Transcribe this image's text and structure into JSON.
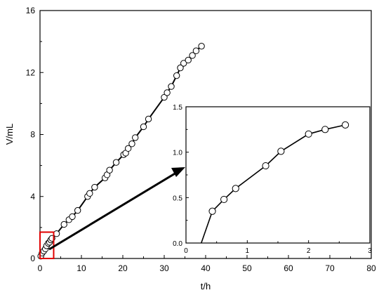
{
  "chart_data": {
    "type": "scatter",
    "xlabel": "t/h",
    "ylabel": "V/mL",
    "xlim": [
      0,
      80
    ],
    "ylim": [
      0,
      16
    ],
    "xticks": [
      0,
      10,
      20,
      30,
      40,
      50,
      60,
      70,
      80
    ],
    "yticks": [
      0,
      4,
      8,
      12,
      16
    ],
    "grid": false,
    "legend": "none",
    "series": [
      {
        "values_x": [
          0.2,
          0.5,
          0.9,
          1.3,
          1.6,
          2.0,
          2.3,
          2.6,
          2.9,
          4.0,
          5.8,
          7.0,
          7.8,
          9.1,
          11.5,
          12.0,
          13.2,
          15.7,
          16.2,
          16.8,
          18.4,
          20.2,
          20.7,
          21.3,
          22.2,
          23.0,
          25.0,
          26.2,
          30.0,
          30.7,
          31.7,
          33.0,
          33.9,
          34.7,
          35.8,
          36.8,
          37.7,
          39.0
        ],
        "values_y": [
          0.15,
          0.35,
          0.48,
          0.62,
          0.82,
          0.98,
          1.05,
          1.2,
          1.3,
          1.6,
          2.2,
          2.5,
          2.7,
          3.1,
          4.0,
          4.2,
          4.6,
          5.2,
          5.4,
          5.7,
          6.2,
          6.7,
          6.8,
          7.1,
          7.4,
          7.8,
          8.5,
          9.0,
          10.4,
          10.7,
          11.1,
          11.8,
          12.3,
          12.6,
          12.8,
          13.1,
          13.4,
          13.7
        ]
      }
    ],
    "highlight_box": {
      "x": [
        0,
        3.3
      ],
      "y": [
        0,
        1.7
      ],
      "color": "#e00000"
    },
    "inset": {
      "xlim": [
        0,
        3
      ],
      "ylim": [
        0,
        1.5
      ],
      "xticks": [
        0,
        1,
        2,
        3
      ],
      "yticks": [
        "0.0",
        "0.5",
        "1.0",
        "1.5"
      ],
      "x": [
        0.25,
        0.43,
        0.62,
        0.81,
        1.3,
        1.55,
        2.0,
        2.27,
        2.6
      ],
      "y": [
        0.0,
        0.35,
        0.48,
        0.6,
        0.85,
        1.01,
        1.2,
        1.25,
        1.3
      ],
      "markers": [
        false,
        true,
        true,
        true,
        true,
        true,
        true,
        true,
        true
      ]
    }
  }
}
